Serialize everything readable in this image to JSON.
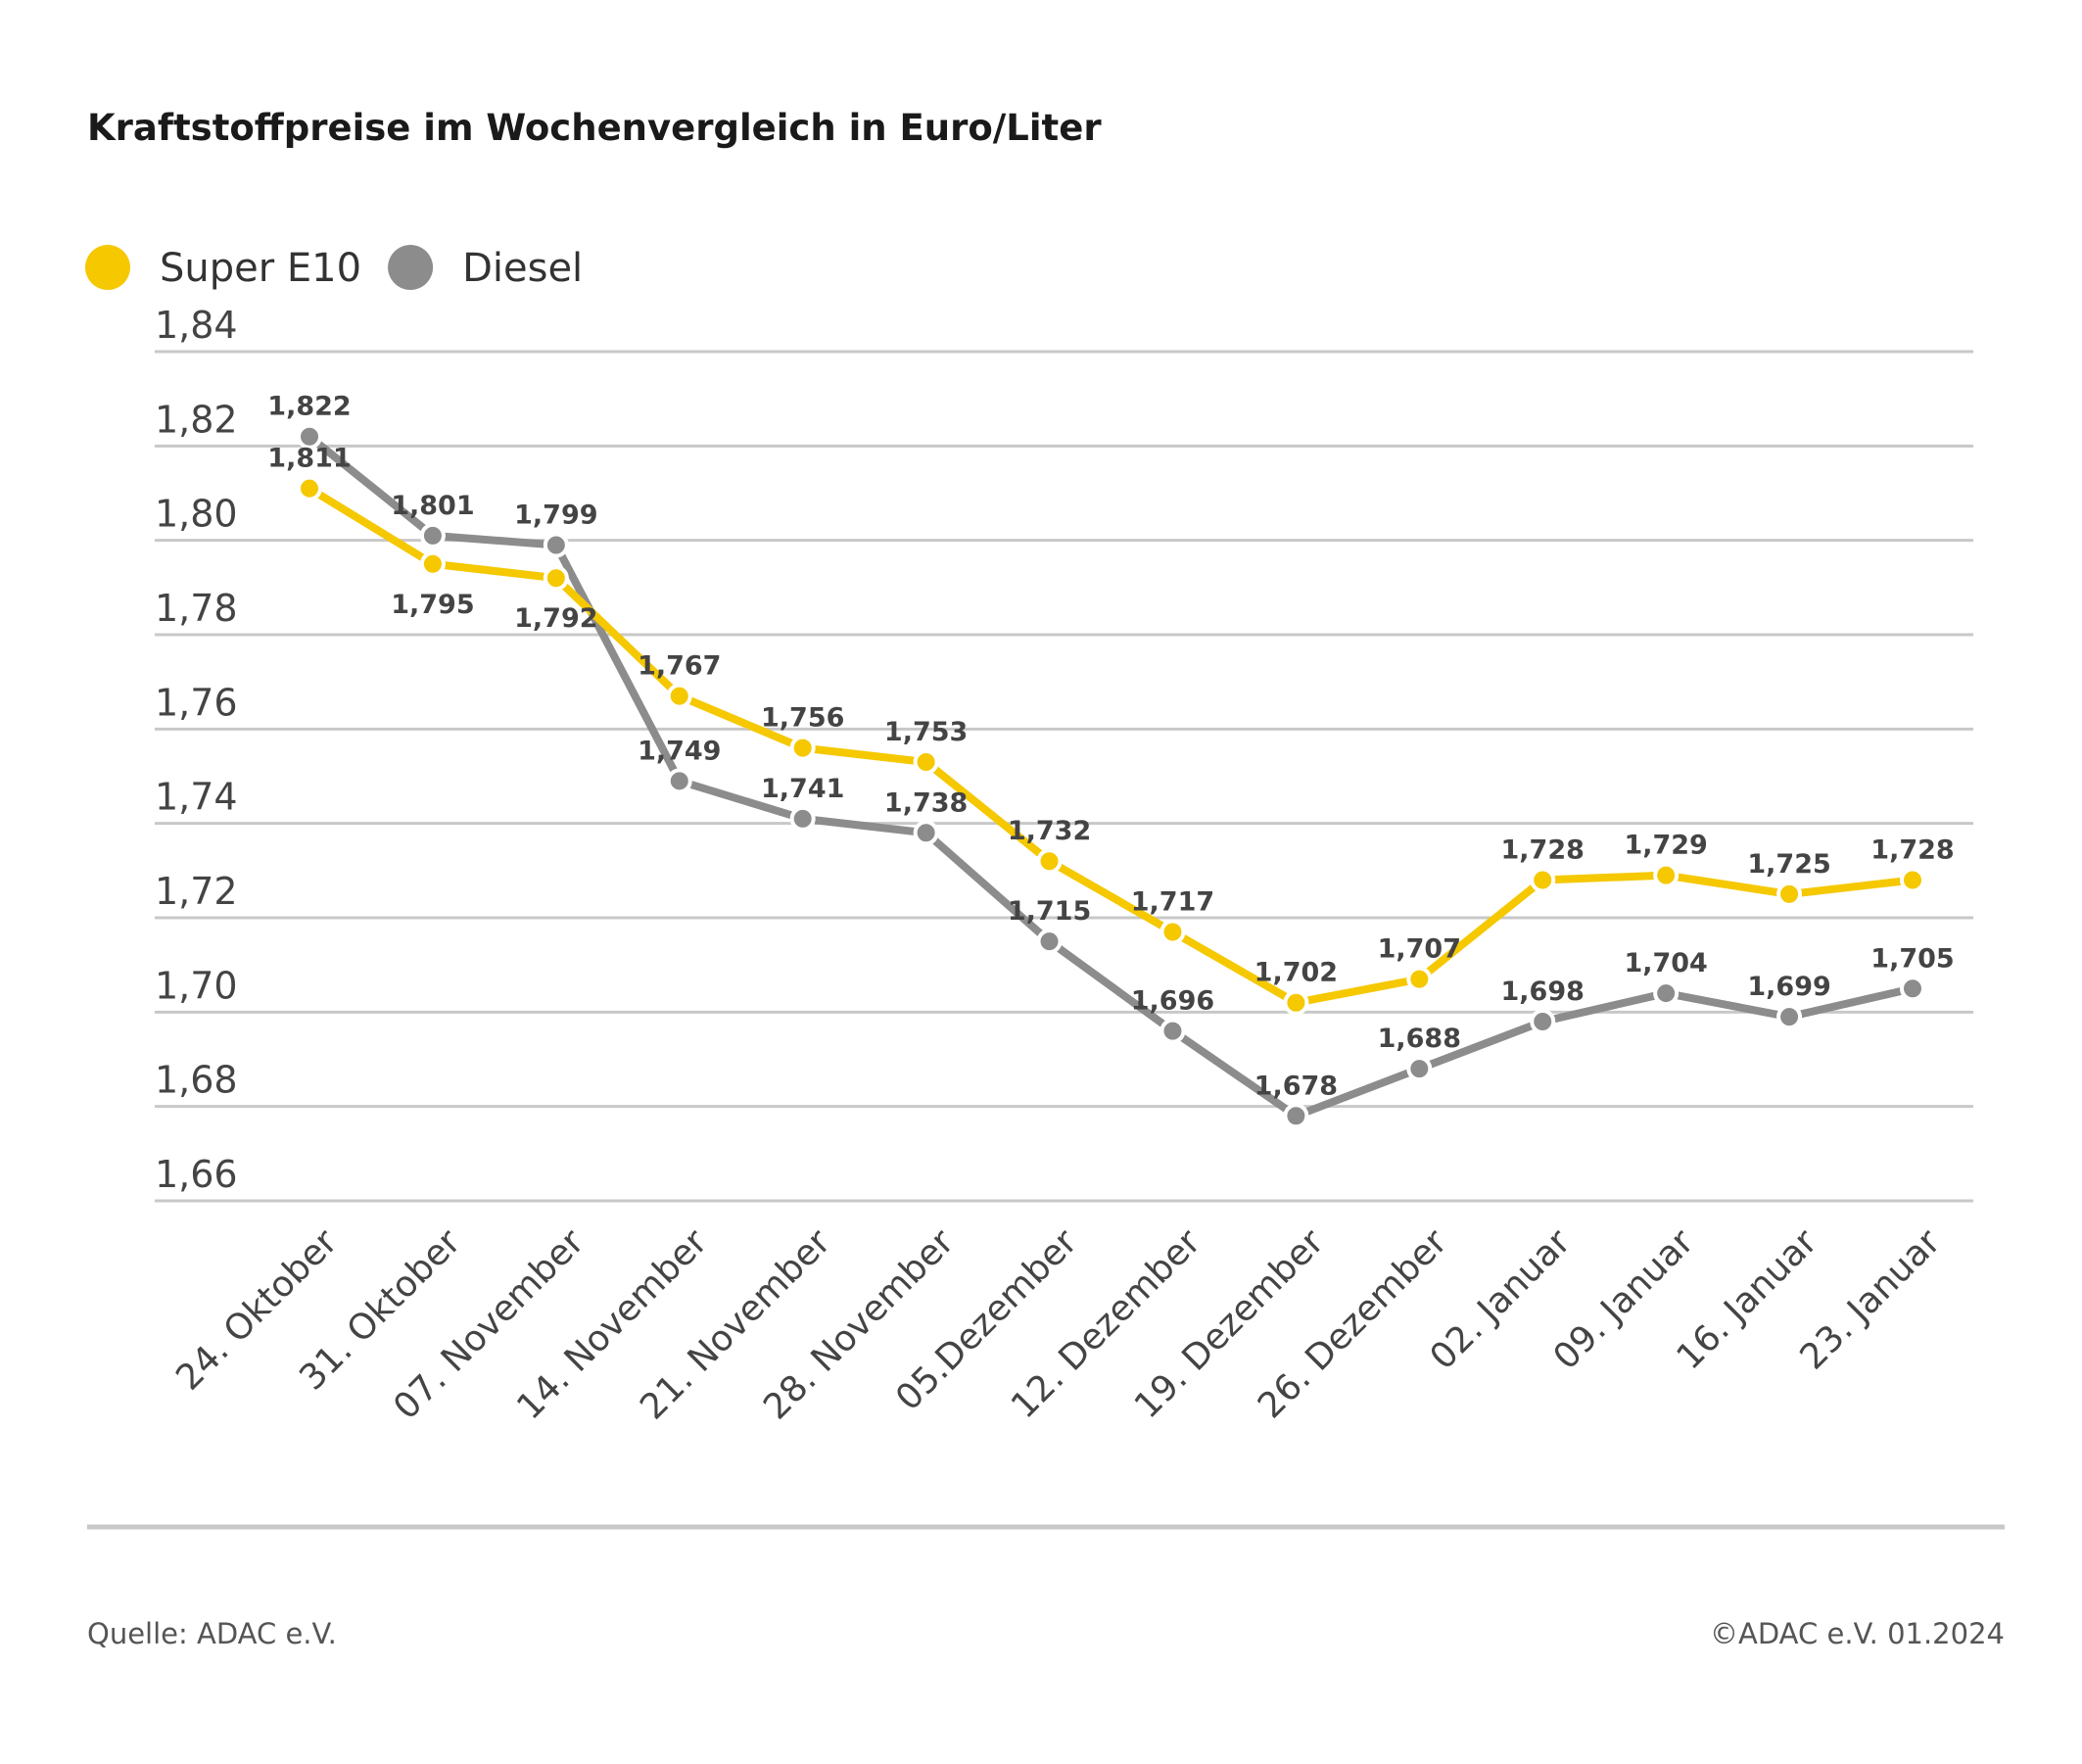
{
  "chart_data": {
    "type": "line",
    "title": "Kraftstoffpreise im Wochenvergleich in Euro/Liter",
    "categories": [
      "24. Oktober",
      "31. Oktober",
      "07. November",
      "14. November",
      "21. November",
      "28. November",
      "05.Dezember",
      "12. Dezember",
      "19. Dezember",
      "26. Dezember",
      "02. Januar",
      "09. Januar",
      "16. Januar",
      "23. Januar"
    ],
    "series": [
      {
        "name": "Super E10",
        "color": "#f5c800",
        "values": [
          1.811,
          1.795,
          1.792,
          1.767,
          1.756,
          1.753,
          1.732,
          1.717,
          1.702,
          1.707,
          1.728,
          1.729,
          1.725,
          1.728
        ]
      },
      {
        "name": "Diesel",
        "color": "#8c8c8c",
        "values": [
          1.822,
          1.801,
          1.799,
          1.749,
          1.741,
          1.738,
          1.715,
          1.696,
          1.678,
          1.688,
          1.698,
          1.704,
          1.699,
          1.705
        ]
      }
    ],
    "ylim": [
      1.66,
      1.84
    ],
    "yticks": [
      "1,84",
      "1,82",
      "1,80",
      "1,78",
      "1,76",
      "1,74",
      "1,72",
      "1,70",
      "1,68",
      "1,66"
    ],
    "grid": true,
    "legend": "top-left",
    "decimal_separator": ","
  },
  "footer": {
    "source": "Quelle: ADAC e.V.",
    "copyright": "©ADAC e.V. 01.2024"
  }
}
